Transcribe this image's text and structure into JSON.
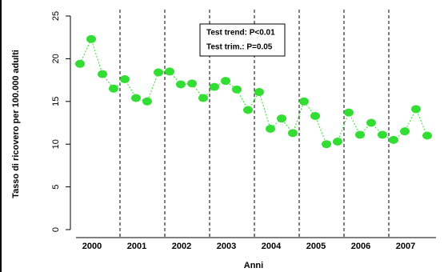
{
  "chart_data": {
    "type": "line",
    "categories": [
      "2000",
      null,
      null,
      null,
      "2001",
      null,
      null,
      null,
      "2002",
      null,
      null,
      null,
      "2003",
      null,
      null,
      null,
      "2004",
      null,
      null,
      null,
      "2005",
      null,
      null,
      null,
      "2006",
      null,
      null,
      null,
      "2007",
      null,
      null,
      null
    ],
    "series": [
      {
        "color": "#33dd33",
        "values": [
          19.4,
          22.3,
          18.2,
          16.5,
          17.6,
          15.4,
          15.0,
          18.4,
          18.5,
          17.0,
          17.1,
          15.4,
          16.7,
          17.4,
          16.4,
          14.0,
          16.1,
          11.8,
          13.0,
          11.3,
          15.0,
          13.3,
          10.0,
          10.3,
          13.7,
          11.1,
          12.5,
          11.1,
          10.5,
          11.5,
          14.1,
          11.0
        ]
      }
    ],
    "ylim": [
      0,
      25
    ],
    "yticks": [
      0,
      5,
      10,
      15,
      20,
      25
    ],
    "y_label": "Tasso di ricovero per 100.000 adulti",
    "x_label": "Anni",
    "annotations": [
      "Test trend: P<0.01",
      "Test trim.: P=0.05"
    ]
  }
}
